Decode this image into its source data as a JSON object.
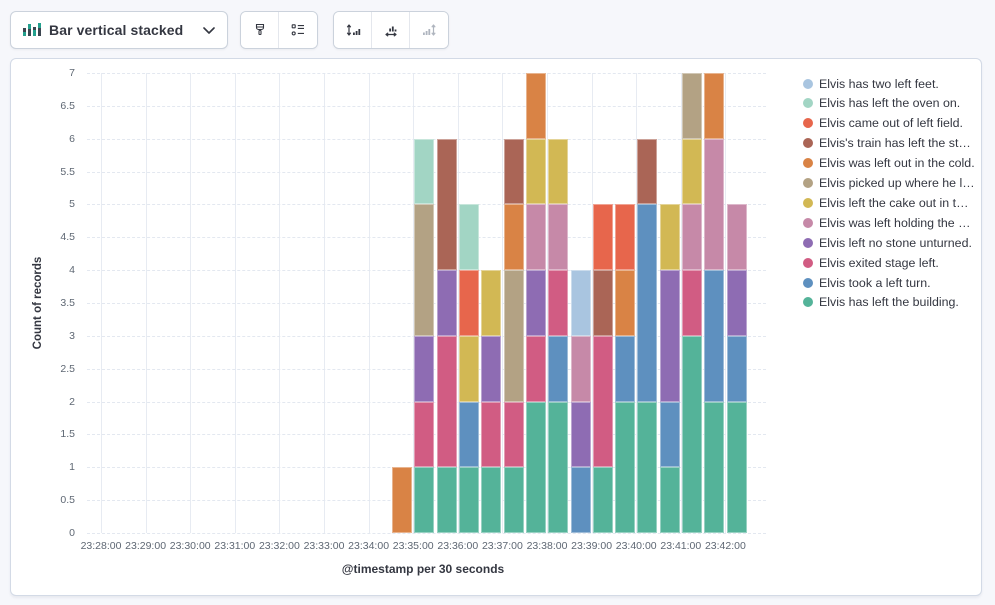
{
  "toolbar": {
    "chart_type": {
      "label": "Bar vertical stacked"
    },
    "buttons": {
      "visual_options": {
        "icon": "paint-brush-icon",
        "disabled": false
      },
      "legend_settings": {
        "icon": "legend-list-icon",
        "disabled": false
      },
      "left_axis": {
        "icon": "axis-left-icon",
        "disabled": false
      },
      "bottom_axis": {
        "icon": "axis-bottom-icon",
        "disabled": false
      },
      "right_axis": {
        "icon": "axis-right-icon",
        "disabled": true
      }
    }
  },
  "chart_data": {
    "type": "bar",
    "mode": "vertical-stacked",
    "title": "",
    "xlabel": "@timestamp per 30 seconds",
    "ylabel": "Count of records",
    "ylim": [
      0,
      7
    ],
    "y_tick_step": 0.5,
    "y_axis_ticks": [
      "0",
      "0.5",
      "1",
      "1.5",
      "2",
      "2.5",
      "3",
      "3.5",
      "4",
      "4.5",
      "5",
      "5.5",
      "6",
      "6.5",
      "7"
    ],
    "x_axis_ticks": [
      "23:28:00",
      "23:29:00",
      "23:30:00",
      "23:31:00",
      "23:32:00",
      "23:33:00",
      "23:34:00",
      "23:35:00",
      "23:36:00",
      "23:37:00",
      "23:38:00",
      "23:39:00",
      "23:40:00",
      "23:41:00",
      "23:42:00"
    ],
    "grid": {
      "vertical": "solid",
      "horizontal": "dashed"
    },
    "legend_position": "right",
    "stack_order": "reverse-legend-bottom-to-top",
    "bar_times": [
      "23:34:30",
      "23:35:00",
      "23:35:30",
      "23:36:00",
      "23:36:30",
      "23:37:00",
      "23:37:30",
      "23:38:00",
      "23:38:30",
      "23:39:00",
      "23:39:30",
      "23:40:00",
      "23:40:30",
      "23:41:00",
      "23:41:30",
      "23:42:00"
    ],
    "series": [
      {
        "label": "Elvis has two left feet.",
        "color": "#A9C5E0",
        "values": [
          0,
          0,
          0,
          0,
          0,
          0,
          0,
          0,
          1,
          0,
          0,
          0,
          0,
          0,
          0,
          0
        ]
      },
      {
        "label": "Elvis has left the oven on.",
        "color": "#A2D5C4",
        "values": [
          0,
          1,
          0,
          1,
          0,
          0,
          0,
          0,
          0,
          0,
          0,
          0,
          0,
          0,
          0,
          0
        ]
      },
      {
        "label": "Elvis came out of left field.",
        "color": "#E7664C",
        "values": [
          0,
          0,
          0,
          1,
          0,
          0,
          0,
          0,
          0,
          1,
          1,
          0,
          0,
          0,
          0,
          0
        ]
      },
      {
        "label": "Elvis's train has left the stati...",
        "color": "#AA6556",
        "values": [
          0,
          0,
          2,
          0,
          0,
          1,
          0,
          0,
          0,
          1,
          0,
          1,
          0,
          0,
          0,
          0
        ]
      },
      {
        "label": "Elvis was left out in the cold.",
        "color": "#D98345",
        "values": [
          1,
          0,
          0,
          0,
          0,
          1,
          1,
          0,
          0,
          0,
          1,
          0,
          0,
          0,
          1,
          0
        ]
      },
      {
        "label": "Elvis picked up where he left...",
        "color": "#B3A284",
        "values": [
          0,
          2,
          0,
          0,
          0,
          2,
          0,
          0,
          0,
          0,
          0,
          0,
          0,
          1,
          0,
          0
        ]
      },
      {
        "label": "Elvis left the cake out in the ...",
        "color": "#D2B854",
        "values": [
          0,
          0,
          0,
          1,
          1,
          0,
          1,
          1,
          0,
          0,
          0,
          0,
          1,
          1,
          0,
          0
        ]
      },
      {
        "label": "Elvis was left holding the ba...",
        "color": "#C689A8",
        "values": [
          0,
          0,
          0,
          0,
          0,
          0,
          1,
          1,
          1,
          0,
          0,
          0,
          0,
          1,
          2,
          1
        ]
      },
      {
        "label": "Elvis left no stone unturned.",
        "color": "#8E6CB3",
        "values": [
          0,
          1,
          1,
          0,
          1,
          0,
          1,
          0,
          1,
          0,
          0,
          0,
          2,
          0,
          0,
          1
        ]
      },
      {
        "label": "Elvis exited stage left.",
        "color": "#D15C83",
        "values": [
          0,
          1,
          2,
          0,
          1,
          1,
          1,
          1,
          0,
          2,
          0,
          0,
          0,
          1,
          0,
          0
        ]
      },
      {
        "label": "Elvis took a left turn.",
        "color": "#5E90BF",
        "values": [
          0,
          0,
          0,
          1,
          0,
          0,
          0,
          1,
          1,
          0,
          1,
          3,
          1,
          0,
          2,
          1
        ]
      },
      {
        "label": "Elvis has left the building.",
        "color": "#54B399",
        "values": [
          0,
          1,
          1,
          1,
          1,
          1,
          2,
          2,
          0,
          1,
          2,
          2,
          1,
          3,
          2,
          2
        ]
      }
    ]
  }
}
